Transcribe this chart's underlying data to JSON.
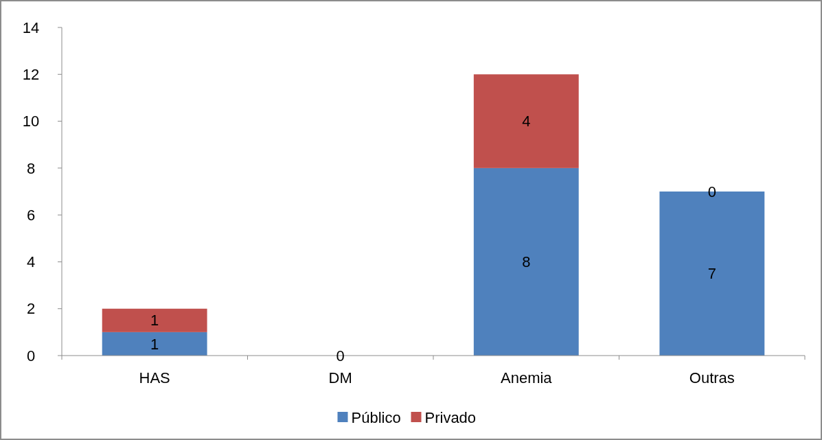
{
  "chart_data": {
    "type": "bar",
    "stacked": true,
    "categories": [
      "HAS",
      "DM",
      "Anemia",
      "Outras"
    ],
    "series": [
      {
        "name": "Público",
        "color": "#4f81bd",
        "values": [
          1,
          0,
          8,
          7
        ],
        "value_labels": [
          "1",
          "0",
          "8",
          "7"
        ]
      },
      {
        "name": "Privado",
        "color": "#c0504d",
        "values": [
          1,
          0,
          4,
          0
        ],
        "value_labels": [
          "1",
          null,
          "4",
          "0"
        ]
      }
    ],
    "ylim": [
      0,
      14
    ],
    "yticks": [
      0,
      2,
      4,
      6,
      8,
      10,
      12,
      14
    ],
    "grid": false,
    "legend": "bottom"
  }
}
